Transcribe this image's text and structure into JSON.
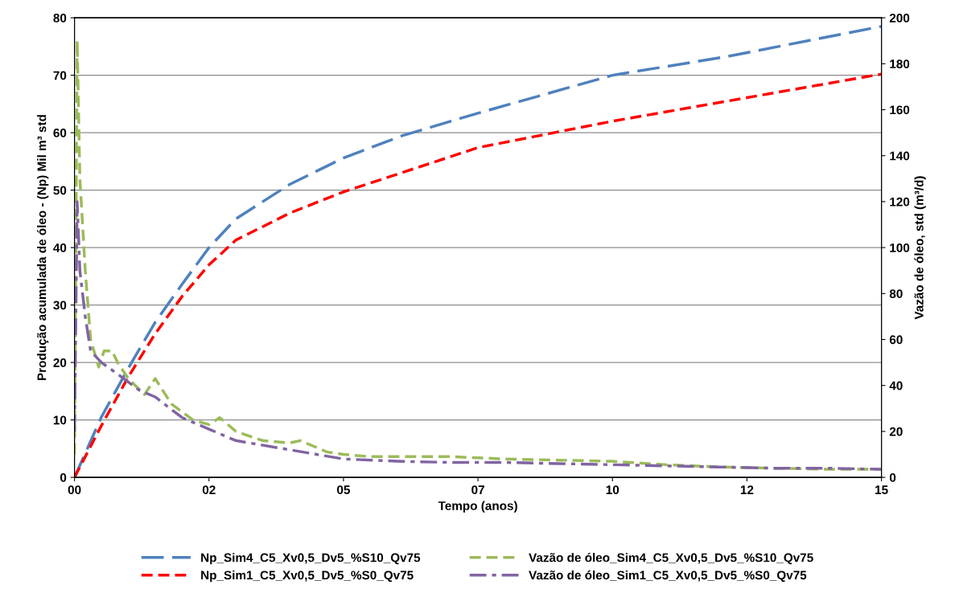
{
  "chart_data": {
    "type": "line",
    "xlabel": "Tempo (anos)",
    "ylabel": "Produção acumulada de óleo - (Np) Mil m³ std",
    "y2label": "Vazão de óleo, std (m³/d)",
    "xlim": [
      0,
      15
    ],
    "xticks": [
      {
        "value": 0,
        "label": "00"
      },
      {
        "value": 2.5,
        "label": "02"
      },
      {
        "value": 5,
        "label": "05"
      },
      {
        "value": 7.5,
        "label": "07"
      },
      {
        "value": 10,
        "label": "10"
      },
      {
        "value": 12.5,
        "label": "12"
      },
      {
        "value": 15,
        "label": "15"
      }
    ],
    "ylim": [
      0,
      80
    ],
    "yticks": [
      0,
      10,
      20,
      30,
      40,
      50,
      60,
      70,
      80
    ],
    "y2lim": [
      0,
      200
    ],
    "y2ticks": [
      0,
      20,
      40,
      60,
      80,
      100,
      120,
      140,
      160,
      180,
      200
    ],
    "grid": "y",
    "legend": "bottom",
    "marker": "none",
    "series": [
      {
        "name": "Np_Sim4_C5_Xv0,5_Dv5_%S10_Qv75",
        "color": "#4f81bd",
        "line_style": "longdash",
        "x": [
          0,
          0.5,
          1,
          1.5,
          2,
          2.5,
          3,
          4,
          5,
          6.1,
          7.5,
          10,
          12.1,
          15
        ],
        "values": [
          0,
          10.5,
          19,
          27,
          33.6,
          40,
          45,
          51,
          55.6,
          59.5,
          63.4,
          70,
          73.2,
          78.5
        ]
      },
      {
        "name": "Np_Sim1_C5_Xv0,5_Dv5_%S0_Qv75",
        "color": "#ff0000",
        "line_style": "dashed",
        "x": [
          0,
          0.5,
          1,
          1.5,
          2,
          2.5,
          3,
          4,
          5,
          7.5,
          10,
          15
        ],
        "values": [
          0,
          9,
          17.5,
          25,
          31.5,
          37,
          41.3,
          46,
          49.7,
          57.4,
          62,
          70.2
        ]
      },
      {
        "name": "Vazão de óleo_Sim4_C5_Xv0,5_Dv5_%S10_Qv75",
        "color": "#9bbb59",
        "line_style": "dashed",
        "axis": "y2",
        "x": [
          0,
          0.05,
          0.1,
          0.2,
          0.3,
          0.45,
          0.55,
          0.7,
          0.8,
          1.0,
          1.3,
          1.5,
          1.8,
          2.2,
          2.5,
          2.7,
          3.0,
          3.5,
          4,
          4.2,
          4.7,
          5,
          5.5,
          6,
          7,
          8,
          9,
          10,
          11,
          12,
          13,
          14,
          15
        ],
        "values": [
          10,
          190,
          130,
          90,
          60,
          48,
          55,
          55,
          50,
          43,
          36,
          43,
          32,
          25,
          23,
          26,
          20,
          16,
          15,
          16,
          11,
          10,
          9,
          9,
          9,
          8,
          7.5,
          7,
          5.5,
          4.5,
          4,
          3.5,
          3.5
        ]
      },
      {
        "name": "Vazão de óleo_Sim1_C5_Xv0,5_Dv5_%S0_Qv75",
        "color": "#8064a2",
        "line_style": "dashdot",
        "axis": "y2",
        "x": [
          0,
          0.05,
          0.1,
          0.2,
          0.3,
          0.5,
          0.8,
          1.2,
          1.5,
          2,
          2.5,
          3,
          4,
          5,
          6,
          7,
          8,
          9,
          10,
          11,
          12,
          13,
          14,
          15
        ],
        "values": [
          20,
          120,
          90,
          70,
          55,
          50,
          45,
          38,
          35,
          26,
          21,
          16,
          12,
          8,
          7,
          6.5,
          6.5,
          6,
          5.5,
          5,
          4.5,
          4,
          4,
          3.5
        ]
      }
    ]
  }
}
